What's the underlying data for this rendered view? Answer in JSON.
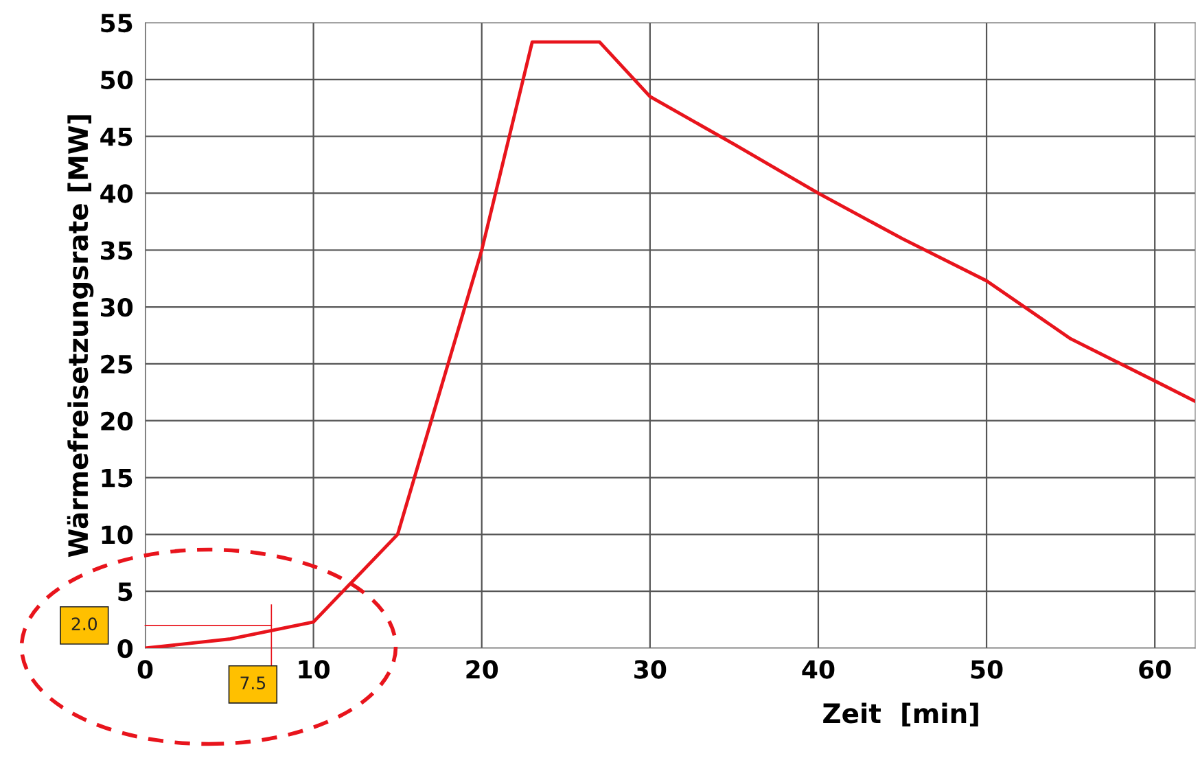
{
  "chart_data": {
    "type": "line",
    "xlabel": "Zeit  [min]",
    "ylabel": "Wärmefreisetzungsrate [MW]",
    "x": [
      0,
      5,
      10,
      15,
      20,
      23,
      27,
      30,
      35,
      40,
      45,
      50,
      55,
      60,
      62.4
    ],
    "series": [
      {
        "color": "#e8141c",
        "values": [
          0,
          0.8,
          2.3,
          10,
          35,
          53.3,
          53.3,
          48.5,
          44.3,
          40,
          36,
          32.3,
          27.2,
          23.5,
          21.7
        ]
      }
    ],
    "xlim": [
      0,
      62.4
    ],
    "xticks": [
      0,
      10,
      20,
      30,
      40,
      50,
      60
    ],
    "ylim": [
      0,
      55
    ],
    "yticks": [
      0,
      5,
      10,
      15,
      20,
      25,
      30,
      35,
      40,
      45,
      50,
      55
    ],
    "grid": true,
    "marker": "none",
    "line_style": "solid",
    "ref_lines": [
      {
        "axis": "y",
        "value": 2.0,
        "label": "2.0",
        "color": "#e8141c"
      },
      {
        "axis": "x",
        "value": 7.5,
        "label": "7.5",
        "color": "#e8141c"
      }
    ]
  }
}
